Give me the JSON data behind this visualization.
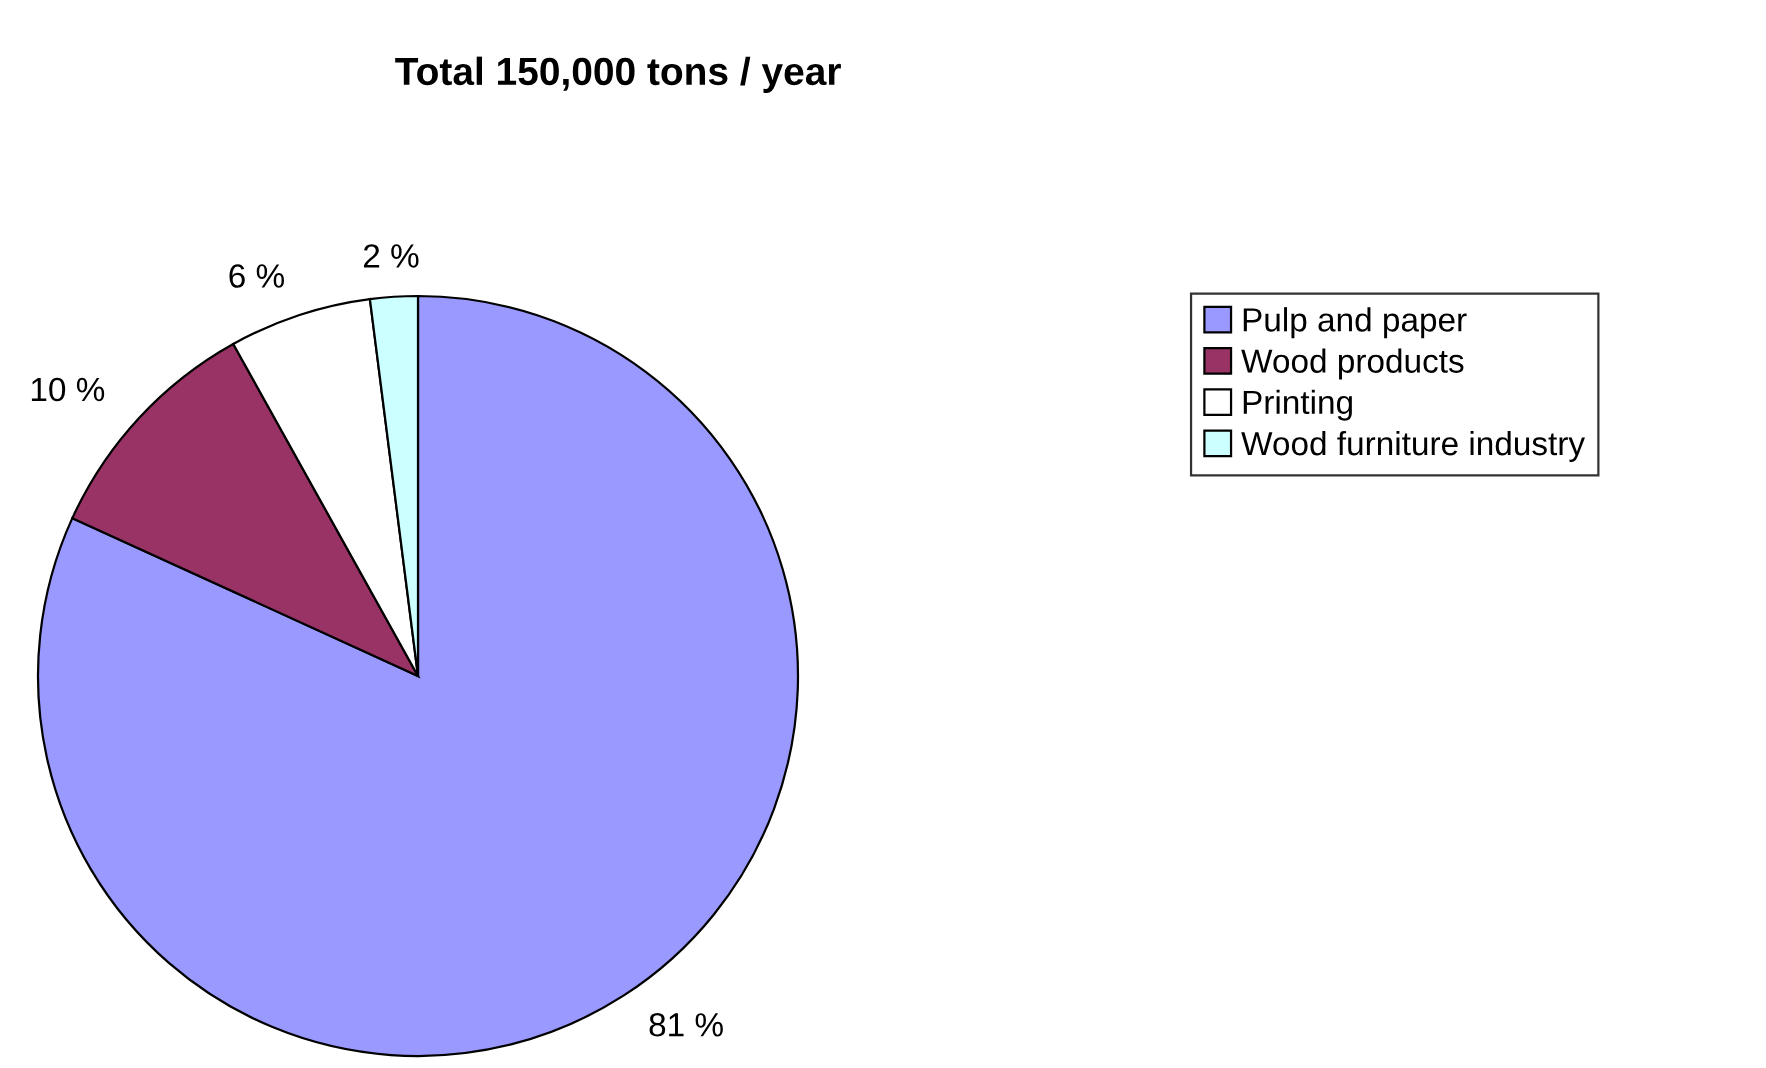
{
  "chart_data": {
    "type": "pie",
    "title": "Total 150,000 tons / year",
    "categories": [
      "Pulp and paper",
      "Wood products",
      "Printing",
      "Wood furniture industry"
    ],
    "values": [
      81,
      10,
      6,
      2
    ],
    "colors": [
      "#9999ff",
      "#993366",
      "#ffffff",
      "#ccffff"
    ],
    "value_labels": [
      "81 %",
      "10 %",
      "6 %",
      "2 %"
    ],
    "legend": "right"
  }
}
